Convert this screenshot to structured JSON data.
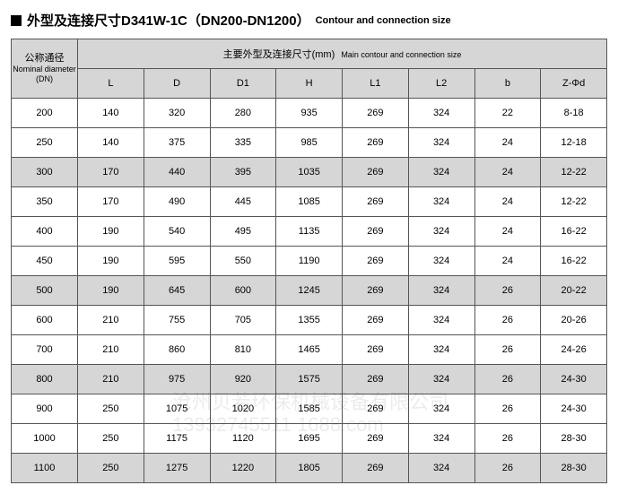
{
  "title": {
    "main": "外型及连接尺寸D341W-1C（DN200-DN1200）",
    "sub": "Contour and connection size"
  },
  "header": {
    "dn_cn": "公称通径",
    "dn_en": "Nominal diameter",
    "dn_unit": "(DN)",
    "group_cn": "主要外型及连接尺寸(mm)",
    "group_en": "Main contour and connection size",
    "cols": [
      "L",
      "D",
      "D1",
      "H",
      "L1",
      "L2",
      "b",
      "Z-Φd"
    ]
  },
  "rows": [
    {
      "dn": "200",
      "v": [
        "140",
        "320",
        "280",
        "935",
        "269",
        "324",
        "22",
        "8-18"
      ],
      "stripe": false
    },
    {
      "dn": "250",
      "v": [
        "140",
        "375",
        "335",
        "985",
        "269",
        "324",
        "24",
        "12-18"
      ],
      "stripe": false
    },
    {
      "dn": "300",
      "v": [
        "170",
        "440",
        "395",
        "1035",
        "269",
        "324",
        "24",
        "12-22"
      ],
      "stripe": true
    },
    {
      "dn": "350",
      "v": [
        "170",
        "490",
        "445",
        "1085",
        "269",
        "324",
        "24",
        "12-22"
      ],
      "stripe": false
    },
    {
      "dn": "400",
      "v": [
        "190",
        "540",
        "495",
        "1135",
        "269",
        "324",
        "24",
        "16-22"
      ],
      "stripe": false
    },
    {
      "dn": "450",
      "v": [
        "190",
        "595",
        "550",
        "1190",
        "269",
        "324",
        "24",
        "16-22"
      ],
      "stripe": false
    },
    {
      "dn": "500",
      "v": [
        "190",
        "645",
        "600",
        "1245",
        "269",
        "324",
        "26",
        "20-22"
      ],
      "stripe": true
    },
    {
      "dn": "600",
      "v": [
        "210",
        "755",
        "705",
        "1355",
        "269",
        "324",
        "26",
        "20-26"
      ],
      "stripe": false
    },
    {
      "dn": "700",
      "v": [
        "210",
        "860",
        "810",
        "1465",
        "269",
        "324",
        "26",
        "24-26"
      ],
      "stripe": false
    },
    {
      "dn": "800",
      "v": [
        "210",
        "975",
        "920",
        "1575",
        "269",
        "324",
        "26",
        "24-30"
      ],
      "stripe": true
    },
    {
      "dn": "900",
      "v": [
        "250",
        "1075",
        "1020",
        "1585",
        "269",
        "324",
        "26",
        "24-30"
      ],
      "stripe": false
    },
    {
      "dn": "1000",
      "v": [
        "250",
        "1175",
        "1120",
        "1695",
        "269",
        "324",
        "26",
        "28-30"
      ],
      "stripe": false
    },
    {
      "dn": "1100",
      "v": [
        "250",
        "1275",
        "1220",
        "1805",
        "269",
        "324",
        "26",
        "28-30"
      ],
      "stripe": true
    }
  ],
  "watermark": {
    "line1": "沧州贝若环保机械设备有限公司",
    "line2": "13932745511  1688.com"
  }
}
